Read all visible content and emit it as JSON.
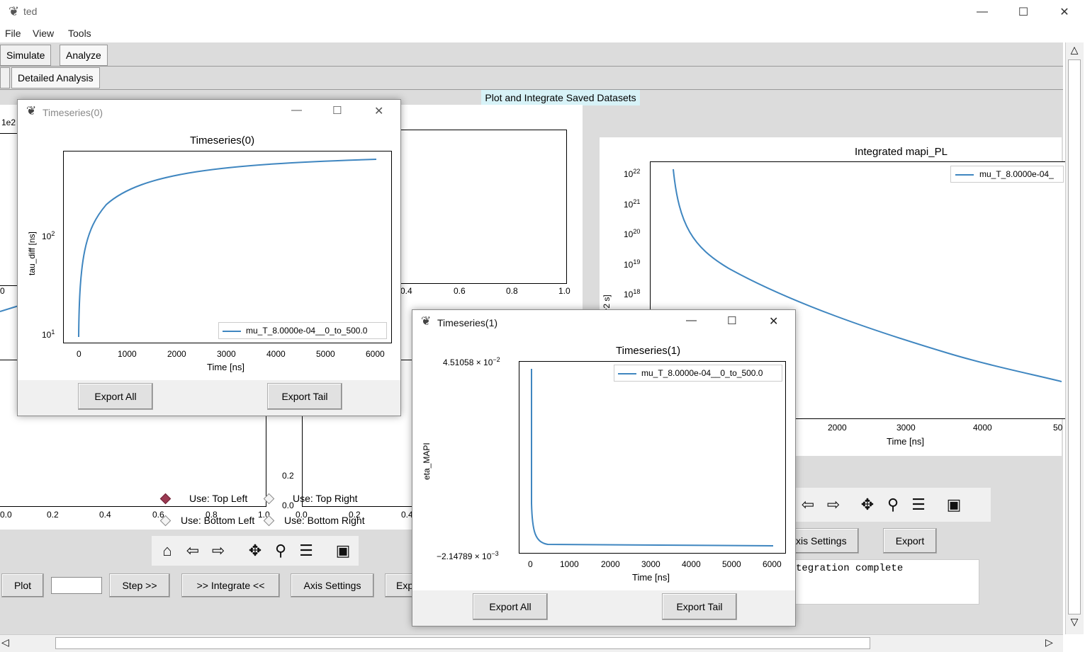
{
  "app": {
    "title": "ted"
  },
  "menu": [
    "File",
    "View",
    "Tools"
  ],
  "tabs": {
    "top": [
      "Simulate",
      "Analyze"
    ],
    "sub": [
      "Detailed Analysis"
    ]
  },
  "banner": "Plot and Integrate Saved Datasets",
  "background_plots": {
    "top_left": {
      "exp_label": "1e2",
      "x_tick_fragment": "0"
    },
    "top_right_axes": {
      "xticks": [
        "0.4",
        "0.6",
        "0.8",
        "1.0"
      ]
    },
    "bottom_left": {
      "xticks": [
        "0.0",
        "0.2",
        "0.4",
        "0.6",
        "0.8",
        "1.0"
      ]
    },
    "bottom_right": {
      "xticks": [
        "0.0",
        "0.2",
        "0.4"
      ],
      "yticks": [
        "0.2",
        "0.0"
      ]
    }
  },
  "integrated_plot": {
    "title": "Integrated mapi_PL",
    "ylabel": "[phot / cm^2 s]",
    "xlabel": "Time [ns]",
    "legend": "mu_T_8.0000e-04_",
    "yticks": [
      "10",
      "10",
      "10",
      "10",
      "10"
    ],
    "ytick_exps": [
      "22",
      "21",
      "20",
      "19",
      "18"
    ],
    "xticks": [
      "2000",
      "3000",
      "4000",
      "50"
    ],
    "chart_data": {
      "type": "line",
      "series": [
        {
          "name": "mu_T_8.0000e-04_",
          "x": [
            300,
            500,
            1000,
            2000,
            3000,
            4000,
            5000
          ],
          "y": [
            1e+22,
            1e+20,
            3e+18,
            6e+17,
            2e+17,
            8e+16,
            4e+16
          ]
        }
      ],
      "yscale": "log"
    }
  },
  "controls": {
    "radios": [
      {
        "label": "Use: Top Left",
        "selected": true
      },
      {
        "label": "Use: Top Right",
        "selected": false
      },
      {
        "label": "Use: Bottom Left",
        "selected": false
      },
      {
        "label": "Use: Bottom Right",
        "selected": false
      }
    ],
    "buttons": {
      "plot": "Plot",
      "step": "Step >>",
      "integrate": ">> Integrate <<",
      "axis_settings": "Axis Settings",
      "exp_fragment": "Exp",
      "axis_settings_right": "xis Settings",
      "export_right": "Export"
    },
    "step_value": "",
    "status": "tegration complete"
  },
  "win0": {
    "title": "Timeseries(0)",
    "plot_title": "Timeseries(0)",
    "ylabel": "tau_diff [ns]",
    "xlabel": "Time [ns]",
    "legend": "mu_T_8.0000e-04__0_to_500.0",
    "xticks": [
      "0",
      "1000",
      "2000",
      "3000",
      "4000",
      "5000",
      "6000"
    ],
    "yticks": [
      "10",
      "10"
    ],
    "ytick_exps": [
      "2",
      "1"
    ],
    "export_all": "Export All",
    "export_tail": "Export Tail",
    "chart_data": {
      "type": "line",
      "series": [
        {
          "name": "mu_T_8.0000e-04__0_to_500.0",
          "x": [
            0,
            100,
            300,
            600,
            1000,
            2000,
            3000,
            4000,
            5000,
            6000
          ],
          "y": [
            10,
            80,
            150,
            220,
            270,
            330,
            350,
            360,
            365,
            368
          ]
        }
      ],
      "yscale": "log",
      "xlim": [
        -300,
        6300
      ]
    }
  },
  "win1": {
    "title": "Timeseries(1)",
    "plot_title": "Timeseries(1)",
    "ylabel": "eta_MAPI",
    "xlabel": "Time [ns]",
    "legend": "mu_T_8.0000e-04__0_to_500.0",
    "ytop": "4.51058 × 10",
    "ytop_exp": "−2",
    "ybot": "−2.14789 × 10",
    "ybot_exp": "−3",
    "xticks": [
      "0",
      "1000",
      "2000",
      "3000",
      "4000",
      "5000",
      "6000"
    ],
    "export_all": "Export All",
    "export_tail": "Export Tail",
    "chart_data": {
      "type": "line",
      "series": [
        {
          "name": "mu_T_8.0000e-04__0_to_500.0",
          "x": [
            0,
            20,
            60,
            150,
            300,
            1000,
            6000
          ],
          "y": [
            0.0451,
            0.025,
            0.006,
            0.001,
            0.0002,
            0.0001,
            0.0001
          ]
        }
      ],
      "ylim": [
        -0.00215,
        0.0451
      ]
    }
  },
  "icons": [
    "feather-icon",
    "minimize-icon",
    "maximize-icon",
    "close-icon",
    "home-icon",
    "back-icon",
    "forward-icon",
    "pan-icon",
    "zoom-icon",
    "configure-icon",
    "save-icon"
  ]
}
